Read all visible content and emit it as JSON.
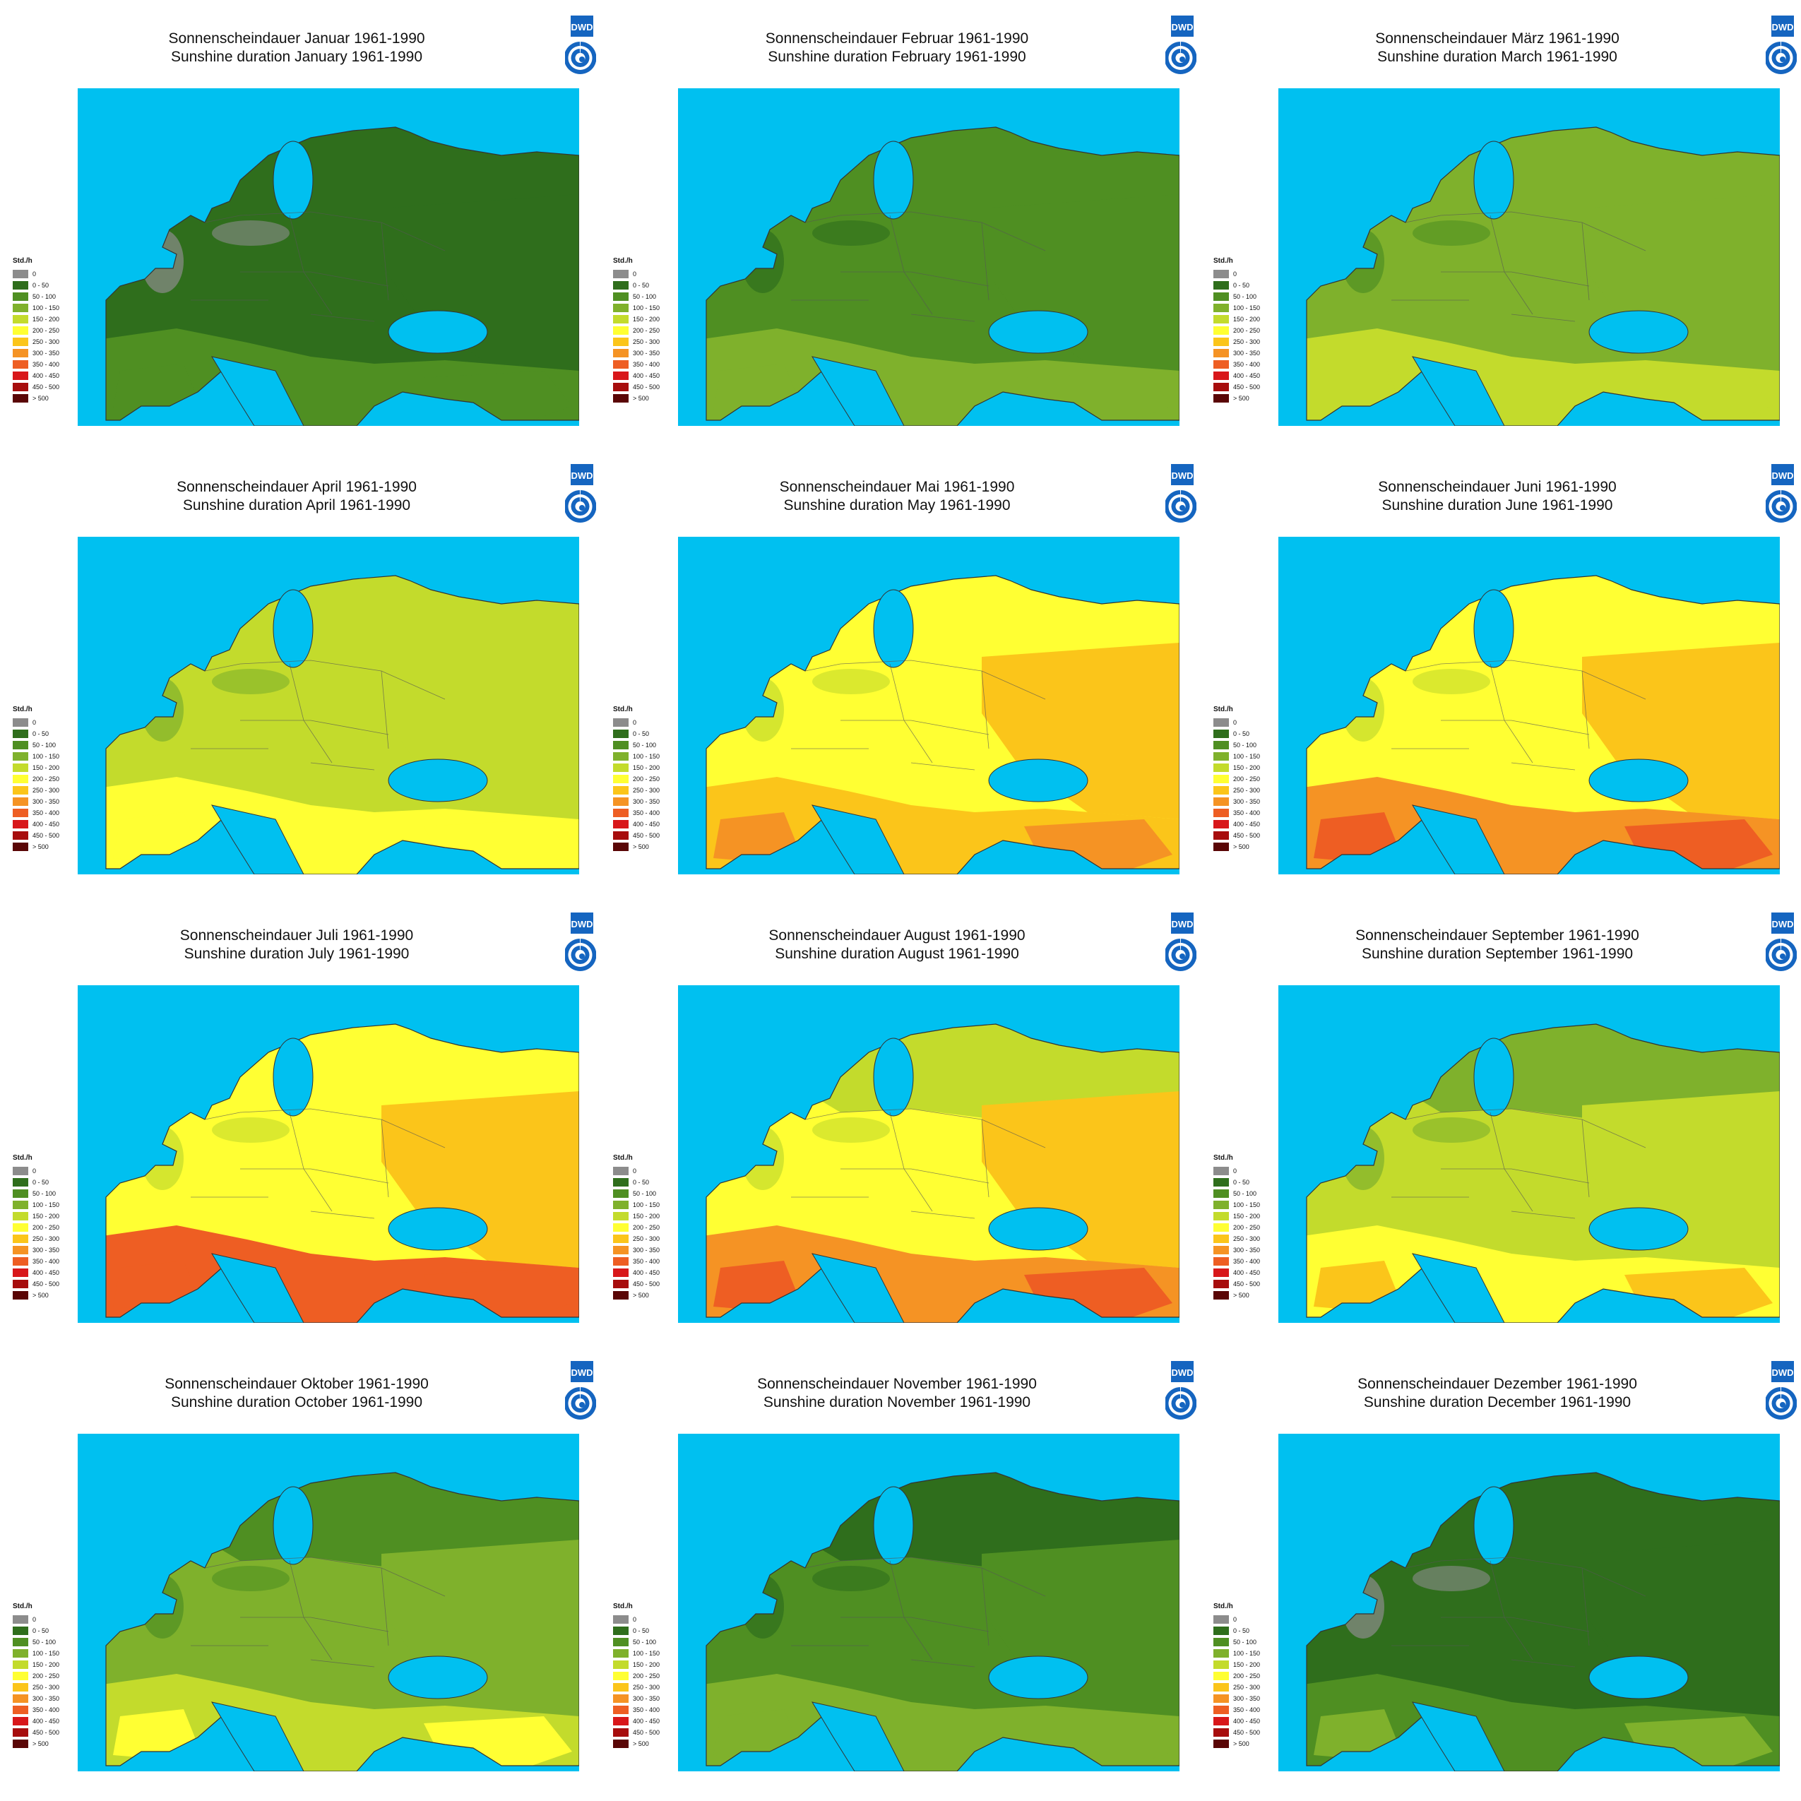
{
  "logo_text": "DWD",
  "legend": {
    "unit": "Std./h",
    "classes": [
      {
        "label": "0",
        "color": "#8c8c8c"
      },
      {
        "label": "0 -  50",
        "color": "#2f6e1c"
      },
      {
        "label": "50 - 100",
        "color": "#4f8f22"
      },
      {
        "label": "100 - 150",
        "color": "#7fb12c"
      },
      {
        "label": "150 - 200",
        "color": "#c3db2c"
      },
      {
        "label": "200 - 250",
        "color": "#ffff33"
      },
      {
        "label": "250 - 300",
        "color": "#fbc51a"
      },
      {
        "label": "300 - 350",
        "color": "#f59324"
      },
      {
        "label": "350 - 400",
        "color": "#ee5e23"
      },
      {
        "label": "400 - 450",
        "color": "#d8171a"
      },
      {
        "label": "450 - 500",
        "color": "#a70d0d"
      },
      {
        "label": "> 500",
        "color": "#5a0606"
      }
    ]
  },
  "sea_color": "#00c0f0",
  "maps": [
    {
      "title_de": "Sonnenscheindauer Januar 1961-1990",
      "title_en": "Sunshine duration January 1961-1990",
      "north": 1,
      "center": 1,
      "south": 2,
      "east": 1,
      "hot": 2
    },
    {
      "title_de": "Sonnenscheindauer Februar 1961-1990",
      "title_en": "Sunshine duration February 1961-1990",
      "north": 2,
      "center": 2,
      "south": 3,
      "east": 2,
      "hot": 3
    },
    {
      "title_de": "Sonnenscheindauer März 1961-1990",
      "title_en": "Sunshine duration March 1961-1990",
      "north": 3,
      "center": 3,
      "south": 4,
      "east": 3,
      "hot": 4
    },
    {
      "title_de": "Sonnenscheindauer April 1961-1990",
      "title_en": "Sunshine duration April 1961-1990",
      "north": 4,
      "center": 4,
      "south": 5,
      "east": 4,
      "hot": 5
    },
    {
      "title_de": "Sonnenscheindauer Mai 1961-1990",
      "title_en": "Sunshine duration May 1961-1990",
      "north": 5,
      "center": 5,
      "south": 6,
      "east": 6,
      "hot": 7
    },
    {
      "title_de": "Sonnenscheindauer Juni 1961-1990",
      "title_en": "Sunshine duration June 1961-1990",
      "north": 5,
      "center": 5,
      "south": 7,
      "east": 6,
      "hot": 8
    },
    {
      "title_de": "Sonnenscheindauer Juli 1961-1990",
      "title_en": "Sunshine duration July 1961-1990",
      "north": 5,
      "center": 5,
      "south": 8,
      "east": 6,
      "hot": 8
    },
    {
      "title_de": "Sonnenscheindauer August 1961-1990",
      "title_en": "Sunshine duration August 1961-1990",
      "north": 4,
      "center": 5,
      "south": 7,
      "east": 6,
      "hot": 8
    },
    {
      "title_de": "Sonnenscheindauer September 1961-1990",
      "title_en": "Sunshine duration September 1961-1990",
      "north": 3,
      "center": 4,
      "south": 5,
      "east": 4,
      "hot": 6
    },
    {
      "title_de": "Sonnenscheindauer Oktober 1961-1990",
      "title_en": "Sunshine duration October 1961-1990",
      "north": 2,
      "center": 3,
      "south": 4,
      "east": 3,
      "hot": 5
    },
    {
      "title_de": "Sonnenscheindauer November 1961-1990",
      "title_en": "Sunshine duration November 1961-1990",
      "north": 1,
      "center": 2,
      "south": 3,
      "east": 2,
      "hot": 3
    },
    {
      "title_de": "Sonnenscheindauer Dezember 1961-1990",
      "title_en": "Sunshine duration December 1961-1990",
      "north": 1,
      "center": 1,
      "south": 2,
      "east": 1,
      "hot": 3
    }
  ]
}
